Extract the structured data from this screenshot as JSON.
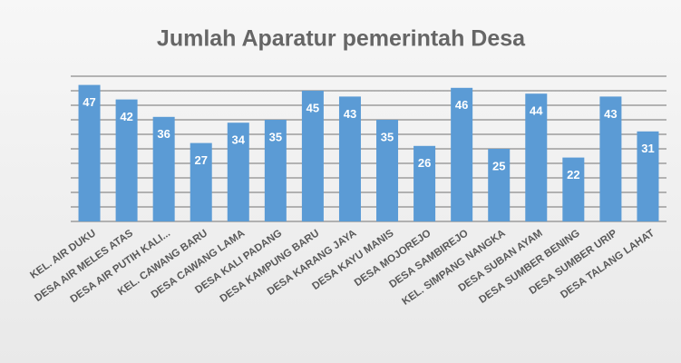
{
  "chart_data": {
    "type": "bar",
    "title": "Jumlah Aparatur pemerintah Desa",
    "categories": [
      "KEL. AIR DUKU",
      "DESA AIR MELES ATAS",
      "DESA AIR PUTIH KALI...",
      "KEL. CAWANG BARU",
      "DESA CAWANG LAMA",
      "DESA KALI PADANG",
      "DESA KAMPUNG BARU",
      "DESA KARANG JAYA",
      "DESA KAYU MANIS",
      "DESA MOJOREJO",
      "DESA SAMBIREJO",
      "KEL. SIMPANG NANGKA",
      "DESA SUBAN AYAM",
      "DESA SUMBER BENING",
      "DESA SUMBER URIP",
      "DESA TALANG LAHAT"
    ],
    "values": [
      47,
      42,
      36,
      27,
      34,
      35,
      45,
      43,
      35,
      26,
      46,
      25,
      44,
      22,
      43,
      31
    ],
    "color": "#5b9bd5",
    "ylim": [
      0,
      50
    ],
    "yticks": [
      0,
      5,
      10,
      15,
      20,
      25,
      30,
      35,
      40,
      45,
      50
    ],
    "grid": true
  }
}
